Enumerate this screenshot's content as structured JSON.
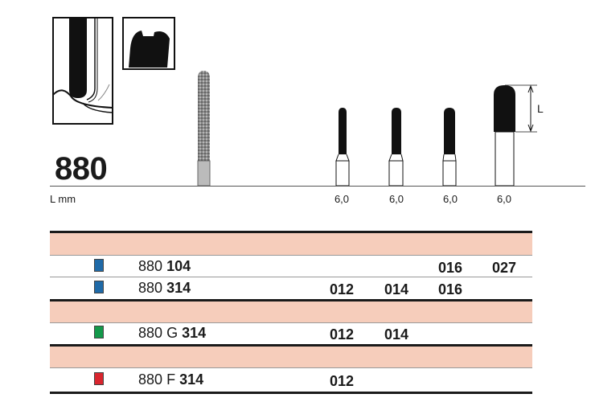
{
  "product": {
    "number": "880"
  },
  "illustrations": {
    "length_label": "L"
  },
  "length_header": "L mm",
  "lengths": [
    "6,0",
    "6,0",
    "6,0",
    "6,0"
  ],
  "rows": [
    {
      "prefix": "880",
      "variant": "",
      "suffix": "104",
      "color": "#1f6aa8",
      "sizes": [
        "",
        "",
        "016",
        "027"
      ]
    },
    {
      "prefix": "880",
      "variant": "",
      "suffix": "314",
      "color": "#1f6aa8",
      "sizes": [
        "012",
        "014",
        "016",
        ""
      ]
    },
    {
      "prefix": "880",
      "variant": "G",
      "suffix": "314",
      "color": "#13994a",
      "sizes": [
        "012",
        "014",
        "",
        ""
      ]
    },
    {
      "prefix": "880",
      "variant": "F",
      "suffix": "314",
      "color": "#d9252e",
      "sizes": [
        "012",
        "",
        "",
        ""
      ]
    }
  ],
  "colors": {
    "band": "#f6cdbb"
  }
}
